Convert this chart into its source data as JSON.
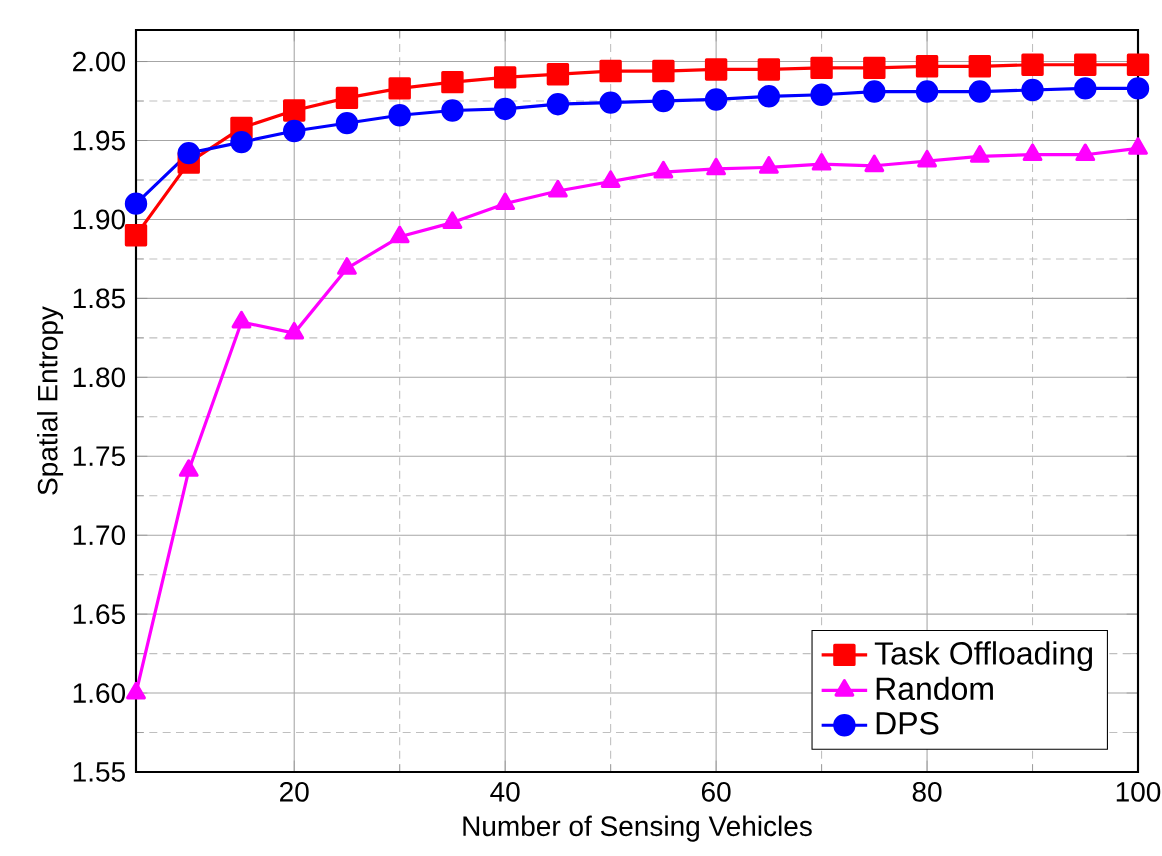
{
  "chart_data": {
    "type": "line",
    "xlabel": "Number of Sensing Vehicles",
    "ylabel": "Spatial Entropy",
    "x": [
      5,
      10,
      15,
      20,
      25,
      30,
      35,
      40,
      45,
      50,
      55,
      60,
      65,
      70,
      75,
      80,
      85,
      90,
      95,
      100
    ],
    "series": [
      {
        "name": "Task Offloading",
        "color": "#ff0000",
        "marker": "square",
        "values": [
          1.89,
          1.936,
          1.958,
          1.969,
          1.977,
          1.983,
          1.987,
          1.99,
          1.992,
          1.994,
          1.994,
          1.995,
          1.995,
          1.996,
          1.996,
          1.997,
          1.997,
          1.998,
          1.998,
          1.998
        ]
      },
      {
        "name": "Random",
        "color": "#ff00ff",
        "marker": "triangle",
        "values": [
          1.6,
          1.741,
          1.835,
          1.828,
          1.869,
          1.889,
          1.898,
          1.91,
          1.918,
          1.924,
          1.93,
          1.932,
          1.933,
          1.935,
          1.934,
          1.937,
          1.94,
          1.941,
          1.941,
          1.945
        ]
      },
      {
        "name": "DPS",
        "color": "#0000ff",
        "marker": "circle",
        "values": [
          1.91,
          1.942,
          1.949,
          1.956,
          1.961,
          1.966,
          1.969,
          1.97,
          1.973,
          1.974,
          1.975,
          1.976,
          1.978,
          1.979,
          1.981,
          1.981,
          1.981,
          1.982,
          1.983,
          1.983
        ]
      }
    ],
    "xlim": [
      5,
      100
    ],
    "xticks": [
      20,
      40,
      60,
      80,
      100
    ],
    "ylim": [
      1.55,
      2.02
    ],
    "yticks": [
      {
        "value": 1.55,
        "label": "1.55"
      },
      {
        "value": 1.6,
        "label": "1.60"
      },
      {
        "value": 1.65,
        "label": "1.65"
      },
      {
        "value": 1.7,
        "label": "1.70"
      },
      {
        "value": 1.75,
        "label": "1.75"
      },
      {
        "value": 1.8,
        "label": "1.80"
      },
      {
        "value": 1.85,
        "label": "1.85"
      },
      {
        "value": 1.9,
        "label": "1.90"
      },
      {
        "value": 1.95,
        "label": "1.95"
      },
      {
        "value": 2.0,
        "label": "2.00"
      }
    ],
    "grid": true,
    "legend": "bottom right",
    "line_style": "solid"
  }
}
